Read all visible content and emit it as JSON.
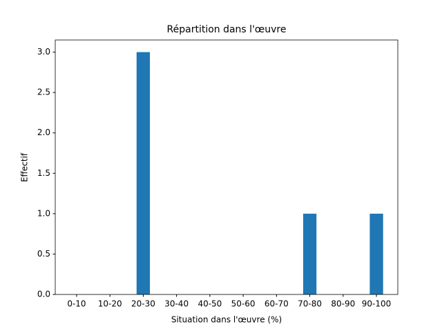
{
  "chart_data": {
    "type": "bar",
    "title": "Répartition dans l'œuvre",
    "x_label": "Situation dans l'œuvre (%)",
    "y_label": "Effectif",
    "categories": [
      "0-10",
      "10-20",
      "20-30",
      "30-40",
      "40-50",
      "50-60",
      "60-70",
      "70-80",
      "80-90",
      "90-100"
    ],
    "values": [
      0,
      0,
      3,
      0,
      0,
      0,
      0,
      1,
      0,
      1
    ],
    "color": "#1f77b4",
    "ylim": [
      0,
      3.15
    ],
    "yticks": [
      {
        "value": 0,
        "label": "0.0"
      },
      {
        "value": 0.5,
        "label": "0.5"
      },
      {
        "value": 1,
        "label": "1.0"
      },
      {
        "value": 1.5,
        "label": "1.5"
      },
      {
        "value": 2,
        "label": "2.0"
      },
      {
        "value": 2.5,
        "label": "2.5"
      },
      {
        "value": 3,
        "label": "3.0"
      }
    ]
  }
}
